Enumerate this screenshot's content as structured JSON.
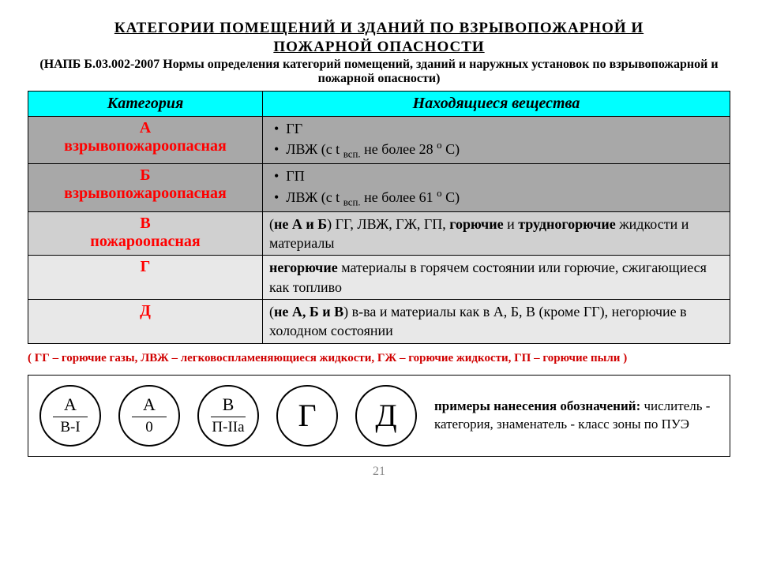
{
  "title_line1": "КАТЕГОРИИ  ПОМЕЩЕНИЙ  И  ЗДАНИЙ  ПО  ВЗРЫВОПОЖАРНОЙ  И",
  "title_line2": "ПОЖАРНОЙ  ОПАСНОСТИ",
  "subtitle": "(НАПБ Б.03.002-2007 Нормы определения категорий помещений, зданий и наружных установок по взрывопожарной и пожарной опасности)",
  "columns": {
    "cat": "Категория",
    "subst": "Находящиеся вещества"
  },
  "header_bg": "#00ffff",
  "rows": [
    {
      "cat_html": "А<br>взрывопожароопасная",
      "cat_color": "#ff0000",
      "bg": "#a8a8a8",
      "desc_html": "<div class='bullet'>&bull;&nbsp;&nbsp;ГГ</div><div class='bullet'>&bull;&nbsp;&nbsp;ЛВЖ (с t <sub>всп.</sub> не более 28 <sup>о</sup> С)</div>"
    },
    {
      "cat_html": "Б<br>взрывопожароопасная",
      "cat_color": "#ff0000",
      "bg": "#a8a8a8",
      "desc_html": "<div class='bullet'>&bull;&nbsp;&nbsp;ГП</div><div class='bullet'>&bull;&nbsp;&nbsp;ЛВЖ (с t <sub>всп.</sub> не более 61 <sup>о</sup> С)</div>"
    },
    {
      "cat_html": "В<br>пожароопасная",
      "cat_color": "#ff0000",
      "bg": "#d0d0d0",
      "desc_html": "(<b>не А и Б</b>) ГГ, ЛВЖ, ГЖ, ГП, <b>горючие</b> и <b>трудногорючие</b> жидкости и материалы"
    },
    {
      "cat_html": "Г",
      "cat_color": "#ff0000",
      "bg": "#e8e8e8",
      "desc_html": "<b>негорючие</b> материалы в горячем состоянии или горючие, сжигающиеся как топливо"
    },
    {
      "cat_html": "Д",
      "cat_color": "#ff0000",
      "bg": "#e8e8e8",
      "desc_html": "(<b>не А, Б и В</b>) в-ва и материалы как в А, Б, В (кроме ГГ), негорючие в холодном состоянии"
    }
  ],
  "legend": "( ГГ – горючие газы, ЛВЖ – легковоспламеняющиеся жидкости, ГЖ – горючие жидкости, ГП – горючие пыли )",
  "legend_color": "#d00000",
  "circles": [
    {
      "top": "А",
      "bot": "B-I"
    },
    {
      "top": "А",
      "bot": "0"
    },
    {
      "top": "В",
      "bot": "П-IIа"
    },
    {
      "single": "Г"
    },
    {
      "single": "Д"
    }
  ],
  "examples_label": "примеры нанесения обозначений:",
  "examples_desc": " числитель - категория, знаменатель - класс зоны по ПУЭ",
  "page_number": "21"
}
